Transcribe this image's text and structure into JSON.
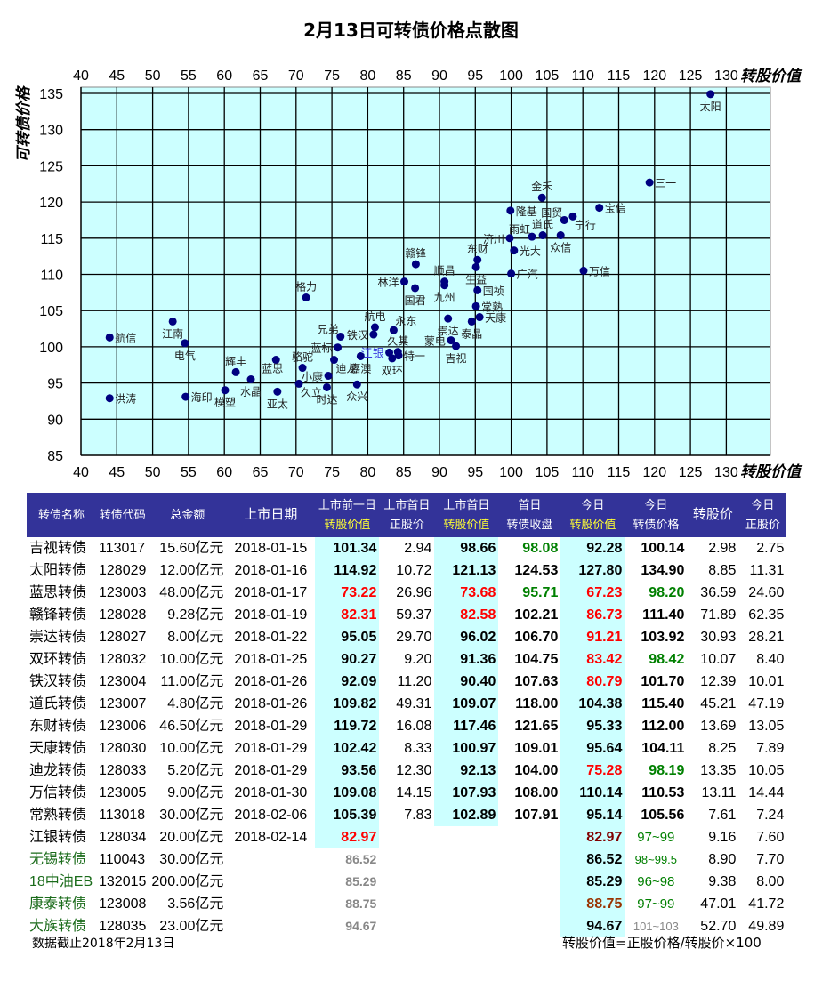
{
  "title": "2月13日可转债价格点散图",
  "chart_data": {
    "type": "scatter",
    "title": "2月13日可转债价格点散图",
    "xlabel": "转股价值",
    "ylabel": "可转债价格",
    "xlim": [
      40,
      136
    ],
    "ylim": [
      85,
      136
    ],
    "x_ticks": [
      40,
      45,
      50,
      55,
      60,
      65,
      70,
      75,
      80,
      85,
      90,
      95,
      100,
      105,
      110,
      115,
      120,
      125,
      130
    ],
    "y_ticks": [
      85,
      90,
      95,
      100,
      105,
      110,
      115,
      120,
      125,
      130,
      135
    ],
    "grid": true,
    "background": "#ccffff",
    "marker_color": "#000080",
    "points": [
      {
        "label": "太阳",
        "x": 127.8,
        "y": 134.9,
        "pos": "below"
      },
      {
        "label": "三一",
        "x": 119.3,
        "y": 122.7,
        "pos": "right"
      },
      {
        "label": "金禾",
        "x": 104.3,
        "y": 120.6,
        "pos": "above"
      },
      {
        "label": "宝信",
        "x": 112.3,
        "y": 119.2,
        "pos": "right"
      },
      {
        "label": "隆基",
        "x": 99.9,
        "y": 118.8,
        "pos": "right"
      },
      {
        "label": "国贸",
        "x": 107.4,
        "y": 117.5,
        "pos": "left-above"
      },
      {
        "label": "宁行",
        "x": 108.6,
        "y": 118.0,
        "pos": "right-below"
      },
      {
        "label": "雨虹",
        "x": 102.9,
        "y": 115.2,
        "pos": "left-above"
      },
      {
        "label": "道氏",
        "x": 104.4,
        "y": 115.4,
        "pos": "above"
      },
      {
        "label": "济川",
        "x": 99.8,
        "y": 115.0,
        "pos": "left"
      },
      {
        "label": "众信",
        "x": 106.9,
        "y": 115.4,
        "pos": "below"
      },
      {
        "label": "光大",
        "x": 100.4,
        "y": 113.3,
        "pos": "right"
      },
      {
        "label": "东财",
        "x": 95.3,
        "y": 112.0,
        "pos": "above"
      },
      {
        "label": "生益",
        "x": 95.1,
        "y": 111.0,
        "pos": "below"
      },
      {
        "label": "广汽",
        "x": 100.0,
        "y": 110.1,
        "pos": "right"
      },
      {
        "label": "万信",
        "x": 110.1,
        "y": 110.5,
        "pos": "right"
      },
      {
        "label": "赣锋",
        "x": 86.7,
        "y": 111.4,
        "pos": "above"
      },
      {
        "label": "顺昌",
        "x": 90.7,
        "y": 109.0,
        "pos": "above"
      },
      {
        "label": "九州",
        "x": 90.7,
        "y": 108.5,
        "pos": "below"
      },
      {
        "label": "林洋",
        "x": 85.1,
        "y": 109.0,
        "pos": "left"
      },
      {
        "label": "国君",
        "x": 86.6,
        "y": 108.1,
        "pos": "below"
      },
      {
        "label": "国祯",
        "x": 95.3,
        "y": 107.8,
        "pos": "right"
      },
      {
        "label": "常熟",
        "x": 95.1,
        "y": 105.6,
        "pos": "right"
      },
      {
        "label": "天康",
        "x": 95.6,
        "y": 104.1,
        "pos": "right"
      },
      {
        "label": "泰晶",
        "x": 94.5,
        "y": 103.5,
        "pos": "below"
      },
      {
        "label": "崇达",
        "x": 91.2,
        "y": 103.9,
        "pos": "below"
      },
      {
        "label": "蒙电",
        "x": 91.6,
        "y": 100.9,
        "pos": "left"
      },
      {
        "label": "吉视",
        "x": 92.3,
        "y": 100.1,
        "pos": "below"
      },
      {
        "label": "格力",
        "x": 71.4,
        "y": 106.8,
        "pos": "above"
      },
      {
        "label": "航电",
        "x": 81.0,
        "y": 102.7,
        "pos": "above"
      },
      {
        "label": "铁汉",
        "x": 80.8,
        "y": 101.7,
        "pos": "left"
      },
      {
        "label": "永东",
        "x": 83.6,
        "y": 102.3,
        "pos": "right-above"
      },
      {
        "label": "兄弟",
        "x": 76.2,
        "y": 101.4,
        "pos": "left-above"
      },
      {
        "label": "蓝标",
        "x": 75.8,
        "y": 99.9,
        "pos": "left"
      },
      {
        "label": "江银",
        "x": 83.0,
        "y": 99.2,
        "pos": "left",
        "color": "#3a3adf"
      },
      {
        "label": "久其",
        "x": 84.2,
        "y": 99.3,
        "pos": "above"
      },
      {
        "label": "特一",
        "x": 84.3,
        "y": 98.8,
        "pos": "right"
      },
      {
        "label": "双环",
        "x": 83.4,
        "y": 98.4,
        "pos": "below"
      },
      {
        "label": "嘉澳",
        "x": 79.0,
        "y": 98.7,
        "pos": "below"
      },
      {
        "label": "迪龙",
        "x": 75.3,
        "y": 98.2,
        "pos": "right-below"
      },
      {
        "label": "骆驼",
        "x": 70.9,
        "y": 97.1,
        "pos": "above"
      },
      {
        "label": "小康",
        "x": 74.5,
        "y": 96.0,
        "pos": "left"
      },
      {
        "label": "众兴",
        "x": 78.5,
        "y": 94.8,
        "pos": "below"
      },
      {
        "label": "时达",
        "x": 74.3,
        "y": 94.4,
        "pos": "below"
      },
      {
        "label": "久立",
        "x": 70.4,
        "y": 94.9,
        "pos": "right-below"
      },
      {
        "label": "亚太",
        "x": 67.4,
        "y": 93.8,
        "pos": "below"
      },
      {
        "label": "蓝思",
        "x": 67.2,
        "y": 98.2,
        "pos": "below-left"
      },
      {
        "label": "辉丰",
        "x": 61.6,
        "y": 96.5,
        "pos": "above"
      },
      {
        "label": "水晶",
        "x": 63.7,
        "y": 95.5,
        "pos": "below"
      },
      {
        "label": "模塑",
        "x": 60.1,
        "y": 94.0,
        "pos": "below"
      },
      {
        "label": "海印",
        "x": 54.6,
        "y": 93.1,
        "pos": "right"
      },
      {
        "label": "江南",
        "x": 52.8,
        "y": 103.5,
        "pos": "below"
      },
      {
        "label": "电气",
        "x": 54.5,
        "y": 100.5,
        "pos": "below"
      },
      {
        "label": "航信",
        "x": 44.0,
        "y": 101.3,
        "pos": "right"
      },
      {
        "label": "洪涛",
        "x": 44.0,
        "y": 92.9,
        "pos": "right"
      }
    ]
  },
  "table": {
    "header_bg": "#333399",
    "highlight_bg": "#ccffff",
    "columns": [
      {
        "line1": "转债名称",
        "line2": ""
      },
      {
        "line1": "转债代码",
        "line2": ""
      },
      {
        "line1": "总金额",
        "line2": ""
      },
      {
        "line1": "上市日期",
        "line2": ""
      },
      {
        "line1": "上市前一日",
        "line2": "转股价值"
      },
      {
        "line1": "上市首日",
        "line2": "正股价"
      },
      {
        "line1": "上市首日",
        "line2": "转股价值"
      },
      {
        "line1": "首日",
        "line2": "转债收盘"
      },
      {
        "line1": "今日",
        "line2": "转股价值"
      },
      {
        "line1": "今日",
        "line2": "转债价格"
      },
      {
        "line1": "转股价",
        "line2": ""
      },
      {
        "line1": "今日",
        "line2": "正股价"
      }
    ],
    "rows": [
      {
        "name": "吉视转债",
        "code": "113017",
        "amount": "15.60亿元",
        "date": "2018-01-15",
        "pre_cv": "101.34",
        "pre_cv_c": "",
        "d1_stock": "2.94",
        "d1_cv": "98.66",
        "d1_cv_c": "",
        "d1_close": "98.08",
        "d1_close_c": "grn",
        "t_cv": "92.28",
        "t_cv_c": "",
        "t_price": "100.14",
        "t_price_c": "",
        "conv": "2.98",
        "t_stock": "2.75"
      },
      {
        "name": "太阳转债",
        "code": "128029",
        "amount": "12.00亿元",
        "date": "2018-01-16",
        "pre_cv": "114.92",
        "pre_cv_c": "",
        "d1_stock": "10.72",
        "d1_cv": "121.13",
        "d1_cv_c": "",
        "d1_close": "124.53",
        "d1_close_c": "",
        "t_cv": "127.80",
        "t_cv_c": "",
        "t_price": "134.90",
        "t_price_c": "",
        "conv": "8.85",
        "t_stock": "11.31"
      },
      {
        "name": "蓝思转债",
        "code": "123003",
        "amount": "48.00亿元",
        "date": "2018-01-17",
        "pre_cv": "73.22",
        "pre_cv_c": "red",
        "d1_stock": "26.96",
        "d1_cv": "73.68",
        "d1_cv_c": "red",
        "d1_close": "95.71",
        "d1_close_c": "grn",
        "t_cv": "67.23",
        "t_cv_c": "red",
        "t_price": "98.20",
        "t_price_c": "grn",
        "conv": "36.59",
        "t_stock": "24.60"
      },
      {
        "name": "赣锋转债",
        "code": "128028",
        "amount": "9.28亿元",
        "date": "2018-01-19",
        "pre_cv": "82.31",
        "pre_cv_c": "red",
        "d1_stock": "59.37",
        "d1_cv": "82.58",
        "d1_cv_c": "red",
        "d1_close": "102.21",
        "d1_close_c": "",
        "t_cv": "86.73",
        "t_cv_c": "red",
        "t_price": "111.40",
        "t_price_c": "",
        "conv": "71.89",
        "t_stock": "62.35"
      },
      {
        "name": "崇达转债",
        "code": "128027",
        "amount": "8.00亿元",
        "date": "2018-01-22",
        "pre_cv": "95.05",
        "pre_cv_c": "",
        "d1_stock": "29.70",
        "d1_cv": "96.02",
        "d1_cv_c": "",
        "d1_close": "106.70",
        "d1_close_c": "",
        "t_cv": "91.21",
        "t_cv_c": "red",
        "t_price": "103.92",
        "t_price_c": "",
        "conv": "30.93",
        "t_stock": "28.21"
      },
      {
        "name": "双环转债",
        "code": "128032",
        "amount": "10.00亿元",
        "date": "2018-01-25",
        "pre_cv": "90.27",
        "pre_cv_c": "",
        "d1_stock": "9.20",
        "d1_cv": "91.36",
        "d1_cv_c": "",
        "d1_close": "104.75",
        "d1_close_c": "",
        "t_cv": "83.42",
        "t_cv_c": "red",
        "t_price": "98.42",
        "t_price_c": "grn",
        "conv": "10.07",
        "t_stock": "8.40"
      },
      {
        "name": "铁汉转债",
        "code": "123004",
        "amount": "11.00亿元",
        "date": "2018-01-26",
        "pre_cv": "92.09",
        "pre_cv_c": "",
        "d1_stock": "11.20",
        "d1_cv": "90.40",
        "d1_cv_c": "",
        "d1_close": "107.63",
        "d1_close_c": "",
        "t_cv": "80.79",
        "t_cv_c": "red",
        "t_price": "101.70",
        "t_price_c": "",
        "conv": "12.39",
        "t_stock": "10.01"
      },
      {
        "name": "道氏转债",
        "code": "123007",
        "amount": "4.80亿元",
        "date": "2018-01-26",
        "pre_cv": "109.82",
        "pre_cv_c": "",
        "d1_stock": "49.31",
        "d1_cv": "109.07",
        "d1_cv_c": "",
        "d1_close": "118.00",
        "d1_close_c": "",
        "t_cv": "104.38",
        "t_cv_c": "",
        "t_price": "115.40",
        "t_price_c": "",
        "conv": "45.21",
        "t_stock": "47.19"
      },
      {
        "name": "东财转债",
        "code": "123006",
        "amount": "46.50亿元",
        "date": "2018-01-29",
        "pre_cv": "119.72",
        "pre_cv_c": "",
        "d1_stock": "16.08",
        "d1_cv": "117.46",
        "d1_cv_c": "",
        "d1_close": "121.65",
        "d1_close_c": "",
        "t_cv": "95.33",
        "t_cv_c": "",
        "t_price": "112.00",
        "t_price_c": "",
        "conv": "13.69",
        "t_stock": "13.05"
      },
      {
        "name": "天康转债",
        "code": "128030",
        "amount": "10.00亿元",
        "date": "2018-01-29",
        "pre_cv": "102.42",
        "pre_cv_c": "",
        "d1_stock": "8.33",
        "d1_cv": "100.97",
        "d1_cv_c": "",
        "d1_close": "109.01",
        "d1_close_c": "",
        "t_cv": "95.64",
        "t_cv_c": "",
        "t_price": "104.11",
        "t_price_c": "",
        "conv": "8.25",
        "t_stock": "7.89"
      },
      {
        "name": "迪龙转债",
        "code": "128033",
        "amount": "5.20亿元",
        "date": "2018-01-29",
        "pre_cv": "93.56",
        "pre_cv_c": "",
        "d1_stock": "12.30",
        "d1_cv": "92.13",
        "d1_cv_c": "",
        "d1_close": "104.00",
        "d1_close_c": "",
        "t_cv": "75.28",
        "t_cv_c": "red",
        "t_price": "98.19",
        "t_price_c": "grn",
        "conv": "13.35",
        "t_stock": "10.05"
      },
      {
        "name": "万信转债",
        "code": "123005",
        "amount": "9.00亿元",
        "date": "2018-01-30",
        "pre_cv": "109.08",
        "pre_cv_c": "",
        "d1_stock": "14.15",
        "d1_cv": "107.93",
        "d1_cv_c": "",
        "d1_close": "108.00",
        "d1_close_c": "",
        "t_cv": "110.14",
        "t_cv_c": "",
        "t_price": "110.53",
        "t_price_c": "",
        "conv": "13.11",
        "t_stock": "14.44"
      },
      {
        "name": "常熟转债",
        "code": "113018",
        "amount": "30.00亿元",
        "date": "2018-02-06",
        "pre_cv": "105.39",
        "pre_cv_c": "",
        "d1_stock": "7.83",
        "d1_cv": "102.89",
        "d1_cv_c": "",
        "d1_close": "107.91",
        "d1_close_c": "",
        "t_cv": "95.14",
        "t_cv_c": "",
        "t_price": "105.56",
        "t_price_c": "",
        "conv": "7.61",
        "t_stock": "7.24"
      },
      {
        "name": "江银转债",
        "code": "128034",
        "amount": "20.00亿元",
        "date": "2018-02-14",
        "pre_cv": "82.97",
        "pre_cv_c": "red",
        "d1_stock": "",
        "d1_cv": "",
        "d1_cv_c": "",
        "d1_close": "",
        "d1_close_c": "",
        "t_cv": "82.97",
        "t_cv_c": "drd",
        "t_price": "97~99",
        "t_price_c": "grn-n",
        "conv": "9.16",
        "t_stock": "7.60"
      },
      {
        "name": "无锡转债",
        "code": "110043",
        "amount": "30.00亿元",
        "date": "",
        "pre_cv": "86.52",
        "pre_cv_c": "gry-s",
        "d1_stock": "",
        "d1_cv": "",
        "d1_cv_c": "",
        "d1_close": "",
        "d1_close_c": "",
        "t_cv": "86.52",
        "t_cv_c": "",
        "t_price": "98~99.5",
        "t_price_c": "grn-n",
        "conv": "8.90",
        "t_stock": "7.70"
      },
      {
        "name": "18中油EB",
        "code": "132015",
        "amount": "200.00亿元",
        "date": "",
        "pre_cv": "85.29",
        "pre_cv_c": "gry-s",
        "d1_stock": "",
        "d1_cv": "",
        "d1_cv_c": "",
        "d1_close": "",
        "d1_close_c": "",
        "t_cv": "85.29",
        "t_cv_c": "",
        "t_price": "96~98",
        "t_price_c": "grn-n",
        "conv": "9.38",
        "t_stock": "8.00"
      },
      {
        "name": "康泰转债",
        "code": "123008",
        "amount": "3.56亿元",
        "date": "",
        "pre_cv": "88.75",
        "pre_cv_c": "gry-s",
        "d1_stock": "",
        "d1_cv": "",
        "d1_cv_c": "",
        "d1_close": "",
        "d1_close_c": "",
        "t_cv": "88.75",
        "t_cv_c": "brn",
        "t_price": "97~99",
        "t_price_c": "grn-n",
        "conv": "47.01",
        "t_stock": "41.72"
      },
      {
        "name": "大族转债",
        "code": "128035",
        "amount": "23.00亿元",
        "date": "",
        "pre_cv": "94.67",
        "pre_cv_c": "gry-s",
        "d1_stock": "",
        "d1_cv": "",
        "d1_cv_c": "",
        "d1_close": "",
        "d1_close_c": "",
        "t_cv": "94.67",
        "t_cv_c": "",
        "t_price": "101~103",
        "t_price_c": "gry-n",
        "conv": "52.70",
        "t_stock": "49.89"
      }
    ],
    "green_name_rows": [
      14,
      15,
      16,
      17
    ]
  },
  "footer": {
    "left": "数据截止2018年2月13日",
    "right": "转股价值=正股价格/转股价×100"
  }
}
